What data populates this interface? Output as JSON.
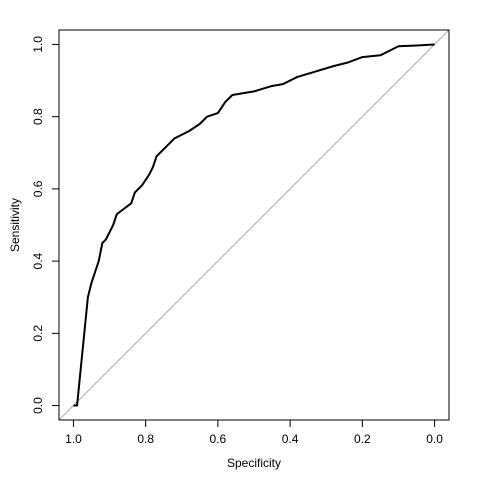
{
  "chart_data": {
    "type": "line",
    "x_label": "Specificity",
    "y_label": "Sensitivity",
    "x": [
      1.0,
      0.99,
      0.985,
      0.98,
      0.975,
      0.97,
      0.965,
      0.96,
      0.95,
      0.94,
      0.93,
      0.92,
      0.91,
      0.89,
      0.88,
      0.86,
      0.84,
      0.83,
      0.81,
      0.79,
      0.78,
      0.77,
      0.74,
      0.72,
      0.7,
      0.68,
      0.65,
      0.63,
      0.6,
      0.58,
      0.56,
      0.5,
      0.45,
      0.42,
      0.38,
      0.33,
      0.28,
      0.24,
      0.2,
      0.15,
      0.12,
      0.1,
      0.05,
      0.0
    ],
    "values": [
      0,
      0.0,
      0.05,
      0.1,
      0.15,
      0.2,
      0.25,
      0.3,
      0.34,
      0.37,
      0.4,
      0.45,
      0.46,
      0.5,
      0.53,
      0.545,
      0.56,
      0.59,
      0.61,
      0.64,
      0.66,
      0.69,
      0.72,
      0.74,
      0.75,
      0.76,
      0.78,
      0.8,
      0.81,
      0.84,
      0.86,
      0.87,
      0.885,
      0.89,
      0.91,
      0.925,
      0.94,
      0.95,
      0.965,
      0.97,
      0.985,
      0.995,
      0.997,
      1.0
    ],
    "color": "#000000",
    "xlim": [
      1.04,
      -0.04
    ],
    "xticks": [
      {
        "value": 1,
        "label": "1.0"
      },
      0.8,
      0.6,
      0.4,
      0.2,
      {
        "value": 0,
        "label": "0.0"
      }
    ],
    "ylim": [
      -0.04,
      1.04
    ],
    "yticks": [
      {
        "value": 0,
        "label": "0.0"
      },
      0.2,
      0.4,
      0.6,
      0.8,
      {
        "value": 1,
        "label": "1.0"
      }
    ]
  }
}
